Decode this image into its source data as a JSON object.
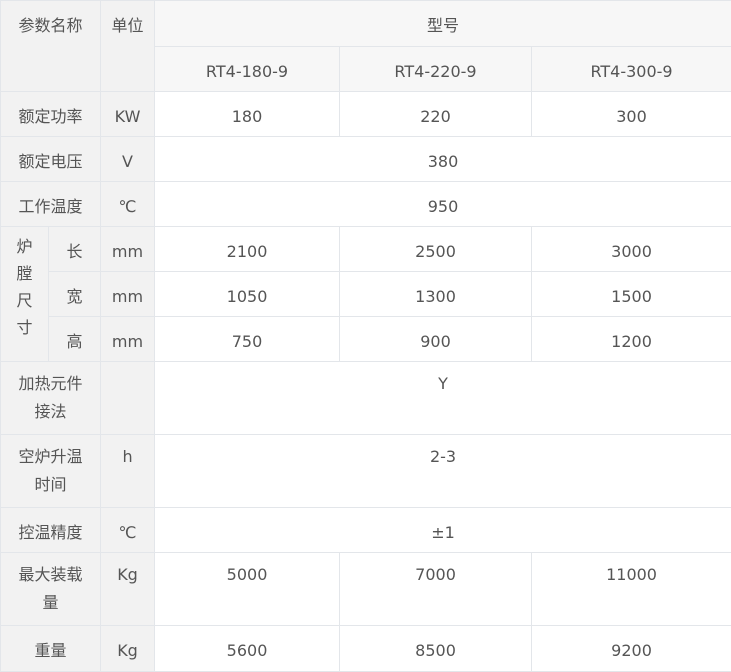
{
  "header": {
    "param": "参数名称",
    "unit": "单位",
    "model": "型号",
    "models": [
      "RT4-180-9",
      "RT4-220-9",
      "RT4-300-9"
    ]
  },
  "rows": [
    {
      "name": "额定功率",
      "unit": "KW",
      "values": [
        "180",
        "220",
        "300"
      ]
    },
    {
      "name": "额定电压",
      "unit": "V",
      "value": "380"
    },
    {
      "name": "工作温度",
      "unit": "℃",
      "value": "950"
    },
    {
      "group": "炉膛尺寸",
      "sub": [
        {
          "name": "长",
          "unit": "mm",
          "values": [
            "2100",
            "2500",
            "3000"
          ]
        },
        {
          "name": "宽",
          "unit": "mm",
          "values": [
            "1050",
            "1300",
            "1500"
          ]
        },
        {
          "name": "高",
          "unit": "mm",
          "values": [
            "750",
            "900",
            "1200"
          ]
        }
      ]
    },
    {
      "name": "加热元件接法",
      "unit": "",
      "value": "Y"
    },
    {
      "name": "空炉升温时间",
      "unit": "h",
      "value": "2-3"
    },
    {
      "name": "控温精度",
      "unit": "℃",
      "value": "±1"
    },
    {
      "name": "最大装载量",
      "unit": "Kg",
      "values": [
        "5000",
        "7000",
        "11000"
      ]
    },
    {
      "name": "重量",
      "unit": "Kg",
      "values": [
        "5600",
        "8500",
        "9200"
      ]
    }
  ]
}
